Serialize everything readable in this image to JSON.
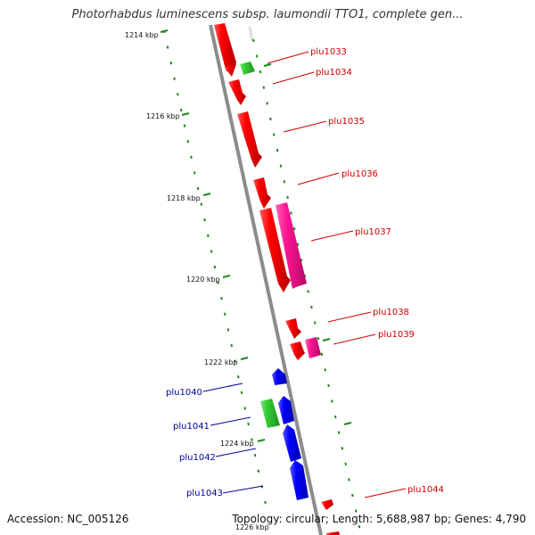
{
  "title": "Photorhabdus luminescens subsp. laumondii TTO1, complete gen...",
  "footer": {
    "accession": "Accession: NC_005126",
    "stats": "Topology: circular; Length: 5,688,987 bp; Genes: 4,790"
  },
  "colors": {
    "forward_red": "#ff0000",
    "forward_magenta": "#ff1493",
    "reverse_blue": "#0000ff",
    "rna_green": "#33cc33",
    "tick_green": "#1a8a1a",
    "backbone_gray": "#888888",
    "label_red": "#cc0000",
    "label_blue": "#000099"
  },
  "scale": {
    "kbp_labels": [
      "1214 kbp",
      "1216 kbp",
      "1218 kbp",
      "1220 kbp",
      "1222 kbp",
      "1224 kbp",
      "1226 kbp"
    ]
  },
  "genes": [
    {
      "label": "plu1033",
      "color": "red",
      "side": "right"
    },
    {
      "label": "plu1034",
      "color": "red",
      "side": "right"
    },
    {
      "label": "plu1035",
      "color": "red",
      "side": "right"
    },
    {
      "label": "plu1036",
      "color": "red",
      "side": "right"
    },
    {
      "label": "plu1037",
      "color": "magenta",
      "side": "right"
    },
    {
      "label": "plu1038",
      "color": "red",
      "side": "right"
    },
    {
      "label": "plu1039",
      "color": "magenta",
      "side": "right"
    },
    {
      "label": "plu1040",
      "color": "blue",
      "side": "left"
    },
    {
      "label": "plu1041",
      "color": "green",
      "side": "left"
    },
    {
      "label": "plu1042",
      "color": "blue",
      "side": "left"
    },
    {
      "label": "plu1043",
      "color": "blue",
      "side": "left"
    },
    {
      "label": "plu1044",
      "color": "red",
      "side": "right"
    }
  ]
}
